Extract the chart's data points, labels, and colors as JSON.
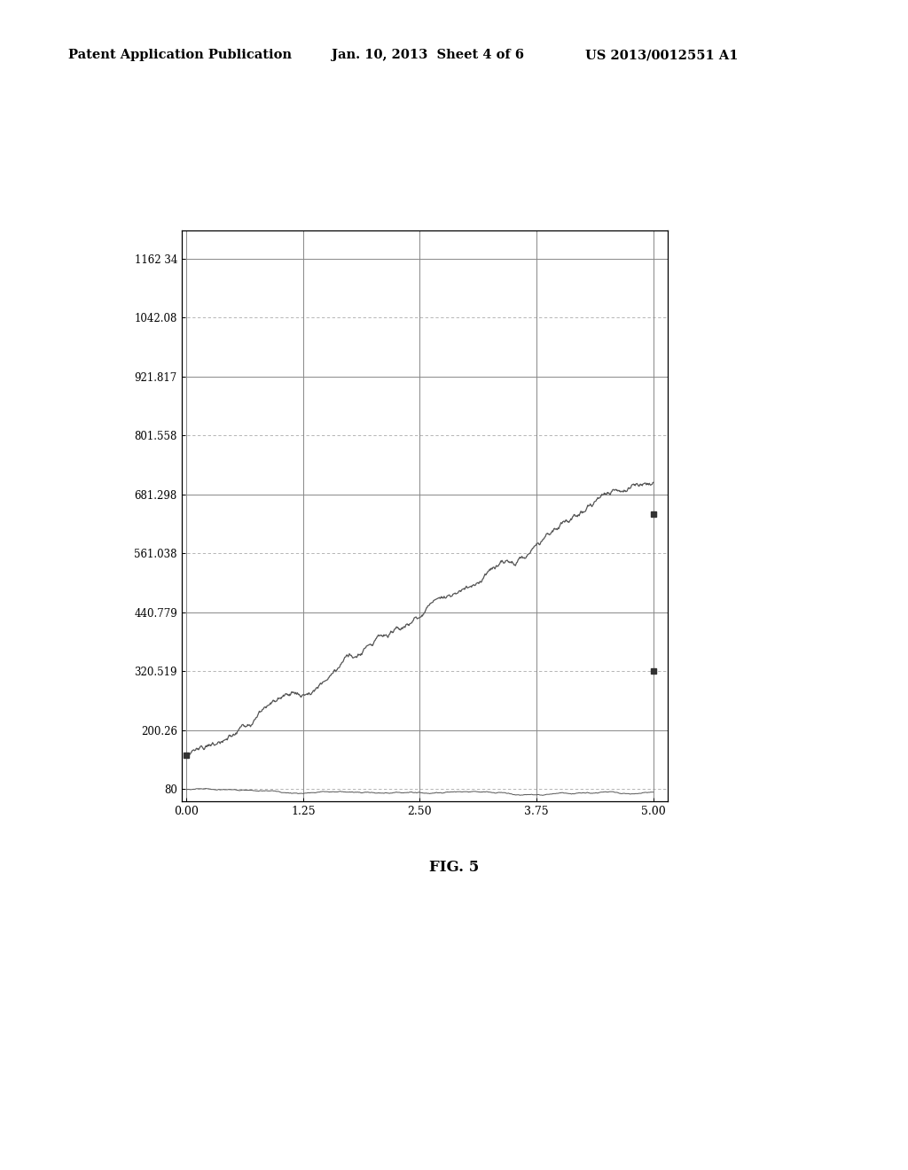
{
  "header_left": "Patent Application Publication",
  "header_center": "Jan. 10, 2013  Sheet 4 of 6",
  "header_right": "US 2013/0012551 A1",
  "fig_label": "FIG. 5",
  "x_ticks": [
    0.0,
    1.25,
    2.5,
    3.75,
    5.0
  ],
  "x_tick_labels": [
    "0.00",
    "1.25",
    "2.50",
    "3.75",
    "5.00"
  ],
  "y_ticks": [
    80,
    200.26,
    320.519,
    440.779,
    561.038,
    681.298,
    801.558,
    921.817,
    1042.08,
    1162.34
  ],
  "y_tick_labels": [
    "80",
    "200.26",
    "320.519",
    "440.779",
    "561.038",
    "681.298",
    "801.558",
    "921.817",
    "1042.08",
    "1162 34"
  ],
  "xlim_left": -0.05,
  "xlim_right": 5.15,
  "ylim_bottom": 55,
  "ylim_top": 1220,
  "line_color": "#555555",
  "marker_color": "#333333",
  "background_color": "#ffffff",
  "grid_solid_color": "#888888",
  "grid_dot_color": "#aaaaaa",
  "marker1_x": 0.0,
  "marker1_y": 150.0,
  "marker2_x": 5.0,
  "marker2_y": 641.0,
  "marker3_x": 5.0,
  "marker3_y": 320.519
}
